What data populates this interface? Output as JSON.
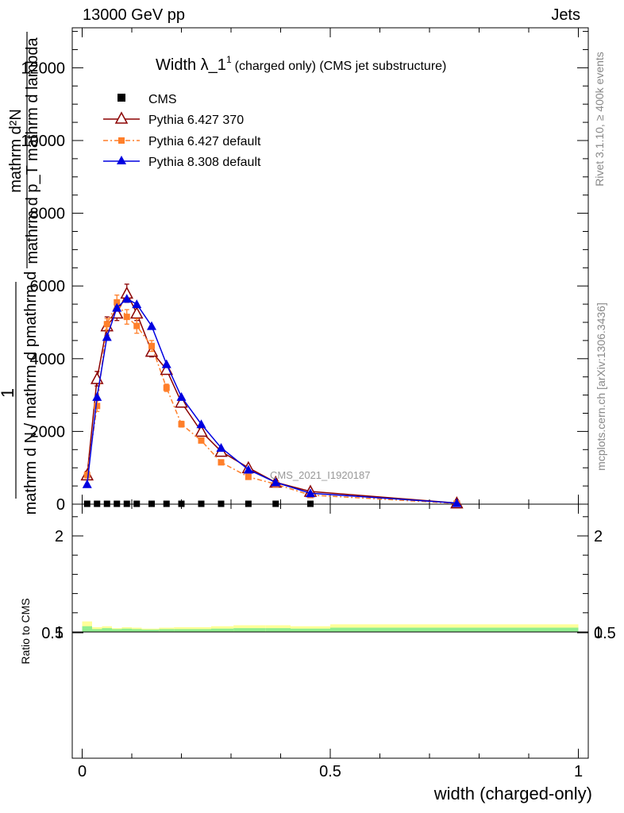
{
  "header": {
    "left": "13000 GeV pp",
    "right": "Jets"
  },
  "side_labels": {
    "rivet": "Rivet 3.1.10, ≥ 400k events",
    "mcplots": "mcplots.cern.ch [arXiv:1306.3436]"
  },
  "chart_data": {
    "type": "line",
    "title": "Width λ_1¹ (charged only) (CMS jet substructure)",
    "title_main": "Width λ_1",
    "title_sup": "1",
    "title_rest": "(charged only) (CMS jet substructure)",
    "watermark": "CMS_2021_I1920187",
    "xlabel": "width (charged-only)",
    "ylabel_num": "mathrm d²N",
    "ylabel_den": "mathrm d p_T mathrm d lambda",
    "ylabel_den_rendered": "mathrm d pmathrm d p",
    "ylabel_prefix": "1",
    "ylabel_prefix_den": "mathrm d N / mathrm d p",
    "ylabel_front": "mathrm d N / mathrm d pmathrm d",
    "ratio_ylabel": "Ratio to CMS",
    "xlim": [
      -0.02,
      1.02
    ],
    "ylim": [
      0,
      13100
    ],
    "ratio_ylim": [
      0.3,
      2.3
    ],
    "x_ticks": [
      "0",
      "0.5",
      "1"
    ],
    "x_tick_values": [
      0,
      0.5,
      1
    ],
    "y_ticks": [
      "0",
      "2000",
      "4000",
      "6000",
      "8000",
      "10000",
      "12000"
    ],
    "y_tick_values": [
      0,
      2000,
      4000,
      6000,
      8000,
      10000,
      12000
    ],
    "ratio_ticks": [
      "0.5",
      "1",
      "2"
    ],
    "ratio_tick_values": [
      0.5,
      1,
      2
    ],
    "x": [
      0.01,
      0.03,
      0.05,
      0.07,
      0.09,
      0.11,
      0.14,
      0.17,
      0.2,
      0.24,
      0.28,
      0.335,
      0.39,
      0.46,
      0.755
    ],
    "bin_edges": [
      0,
      0.02,
      0.04,
      0.06,
      0.08,
      0.1,
      0.12,
      0.155,
      0.185,
      0.22,
      0.26,
      0.305,
      0.37,
      0.42,
      0.5,
      1.0
    ],
    "series": [
      {
        "name": "CMS",
        "style": "marker-square",
        "color": "#000000",
        "values": [
          10,
          10,
          10,
          10,
          10,
          10,
          10,
          10,
          10,
          10,
          10,
          10,
          10,
          10,
          5
        ]
      },
      {
        "name": "Pythia 6.427 370",
        "style": "line-open-triangle",
        "color": "#8b0000",
        "values": [
          800,
          3450,
          4900,
          5250,
          5800,
          5250,
          4200,
          3700,
          2800,
          2000,
          1450,
          1000,
          600,
          350,
          30
        ],
        "errors": [
          100,
          200,
          250,
          200,
          250,
          200,
          150,
          100,
          80,
          60,
          50,
          40,
          30,
          20,
          5
        ]
      },
      {
        "name": "Pythia 6.427 default",
        "style": "dashdot-square",
        "color": "#ff7f2a",
        "values": [
          800,
          2700,
          4950,
          5550,
          5150,
          4900,
          4350,
          3200,
          2200,
          1750,
          1150,
          750,
          550,
          250,
          20
        ],
        "errors": [
          80,
          150,
          150,
          200,
          200,
          200,
          150,
          100,
          80,
          60,
          50,
          40,
          30,
          20,
          5
        ]
      },
      {
        "name": "Pythia 8.308 default",
        "style": "line-filled-triangle",
        "color": "#0000e0",
        "values": [
          550,
          2950,
          4600,
          5400,
          5650,
          5500,
          4900,
          3850,
          2950,
          2200,
          1550,
          950,
          600,
          300,
          30
        ]
      }
    ],
    "ratio_bands": {
      "inner_halfwidth": [
        0.06,
        0.03,
        0.04,
        0.03,
        0.035,
        0.03,
        0.025,
        0.03,
        0.03,
        0.03,
        0.035,
        0.04,
        0.04,
        0.035,
        0.045
      ],
      "outer_halfwidth": [
        0.11,
        0.05,
        0.06,
        0.04,
        0.05,
        0.045,
        0.035,
        0.045,
        0.05,
        0.05,
        0.06,
        0.07,
        0.07,
        0.06,
        0.08
      ],
      "inner_color": "#90ee90",
      "outer_color": "#ffff99"
    }
  }
}
